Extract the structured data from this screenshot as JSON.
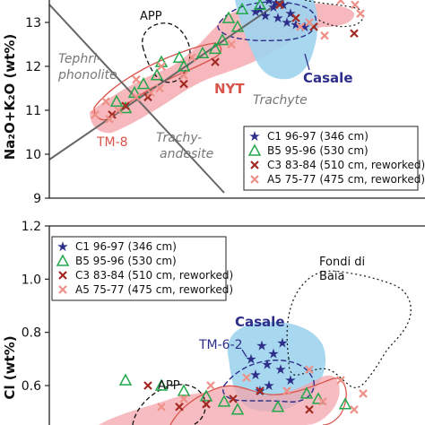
{
  "chart_data": [
    {
      "type": "scatter",
      "panel": "top",
      "ylabel": "Na₂O+K₂O (wt%)",
      "ylim": [
        9,
        13.7
      ],
      "yticks": [
        9,
        10,
        11,
        12,
        13
      ],
      "field_labels": [
        "Tephri-",
        "phonolite",
        "Trachyte",
        "Trachy-",
        "andesite"
      ],
      "region_labels": [
        "APP",
        "NYT",
        "Casale",
        "TM-8"
      ],
      "region_colors": {
        "NYT": "#f4a6ac",
        "Casale": "#9fd4ee",
        "APP": "#111111",
        "TM-8": "#d9544a"
      },
      "legend": {
        "placement": "lower-right",
        "entries": [
          {
            "symbol": "★",
            "label": "C1 96-97 (346 cm)",
            "color": "#2d2e8a"
          },
          {
            "symbol": "△",
            "label": "B5 95-96 (530 cm)",
            "color": "#22a84a"
          },
          {
            "symbol": "✖",
            "label": "C3 83-84 (510 cm, reworked)",
            "color": "#a32a22"
          },
          {
            "symbol": "✖",
            "label": "A5 75-77 (475 cm, reworked)",
            "color": "#ee9088"
          }
        ]
      },
      "series": [
        {
          "name": "C1 96-97 (346 cm)",
          "color": "#2d2e8a",
          "points": [
            [
              0,
              13.5
            ],
            [
              0,
              13.45
            ],
            [
              0,
              13.4
            ],
            [
              0,
              13.3
            ],
            [
              0,
              13.2
            ],
            [
              0,
              13.15
            ],
            [
              0,
              13.1
            ],
            [
              0,
              13.0
            ],
            [
              0,
              12.95
            ],
            [
              0,
              13.25
            ],
            [
              0,
              13.35
            ],
            [
              0,
              12.9
            ]
          ]
        },
        {
          "name": "B5 95-96 (530 cm)",
          "color": "#22a84a",
          "points": [
            [
              0,
              13.3
            ],
            [
              0,
              13.1
            ],
            [
              0,
              12.9
            ],
            [
              0,
              12.2
            ],
            [
              0,
              12.1
            ],
            [
              0,
              12.0
            ],
            [
              0,
              11.8
            ],
            [
              0,
              11.6
            ],
            [
              0,
              11.4
            ],
            [
              0,
              11.2
            ],
            [
              0,
              11.05
            ],
            [
              0,
              13.4
            ],
            [
              0,
              12.6
            ],
            [
              0,
              12.4
            ],
            [
              0,
              12.3
            ]
          ]
        },
        {
          "name": "C3 83-84 (510 cm, reworked)",
          "color": "#a32a22",
          "points": [
            [
              0,
              13.4
            ],
            [
              0,
              12.9
            ],
            [
              0,
              12.75
            ],
            [
              0,
              11.3
            ],
            [
              0,
              11.1
            ],
            [
              0,
              10.9
            ],
            [
              0,
              11.6
            ],
            [
              0,
              12.1
            ],
            [
              0,
              13.1
            ]
          ]
        },
        {
          "name": "A5 75-77 (475 cm, reworked)",
          "color": "#ee9088",
          "points": [
            [
              0,
              13.5
            ],
            [
              0,
              13.4
            ],
            [
              0,
              13.2
            ],
            [
              0,
              12.9
            ],
            [
              0,
              12.5
            ],
            [
              0,
              12.2
            ],
            [
              0,
              12.0
            ],
            [
              0,
              11.7
            ],
            [
              0,
              11.5
            ],
            [
              0,
              11.3
            ],
            [
              0,
              11.2
            ],
            [
              0,
              11.0
            ],
            [
              0,
              10.9
            ],
            [
              0,
              10.8
            ],
            [
              0,
              11.8
            ],
            [
              0,
              11.4
            ],
            [
              0,
              12.7
            ],
            [
              0,
              13.0
            ]
          ]
        }
      ]
    },
    {
      "type": "scatter",
      "panel": "bottom",
      "ylabel": "Cl (wt%)",
      "ylim": [
        0.5,
        1.2
      ],
      "yticks": [
        0.6,
        0.8,
        1.0,
        1.2
      ],
      "region_labels": [
        "Fondi di",
        "Baia",
        "Casale",
        "TM-6-2",
        "APP"
      ],
      "legend": {
        "placement": "top-left",
        "entries": [
          {
            "symbol": "★",
            "label": "C1 96-97 (346 cm)",
            "color": "#2d2e8a"
          },
          {
            "symbol": "△",
            "label": "B5 95-96 (530 cm)",
            "color": "#22a84a"
          },
          {
            "symbol": "✖",
            "label": "C3 83-84 (510 cm, reworked)",
            "color": "#a32a22"
          },
          {
            "symbol": "✖",
            "label": "A5 75-77 (475 cm, reworked)",
            "color": "#ee9088"
          }
        ]
      },
      "series": [
        {
          "name": "C1 96-97 (346 cm)",
          "color": "#2d2e8a",
          "points": [
            [
              0,
              0.76
            ],
            [
              0,
              0.75
            ],
            [
              0,
              0.72
            ],
            [
              0,
              0.7
            ],
            [
              0,
              0.68
            ],
            [
              0,
              0.66
            ],
            [
              0,
              0.64
            ],
            [
              0,
              0.62
            ],
            [
              0,
              0.6
            ],
            [
              0,
              0.58
            ]
          ]
        },
        {
          "name": "B5 95-96 (530 cm)",
          "color": "#22a84a",
          "points": [
            [
              0,
              0.62
            ],
            [
              0,
              0.6
            ],
            [
              0,
              0.58
            ],
            [
              0,
              0.56
            ],
            [
              0,
              0.54
            ],
            [
              0,
              0.52
            ],
            [
              0,
              0.55
            ],
            [
              0,
              0.53
            ],
            [
              0,
              0.51
            ],
            [
              0,
              0.57
            ]
          ]
        },
        {
          "name": "C3 83-84 (510 cm, reworked)",
          "color": "#a32a22",
          "points": [
            [
              0,
              0.52
            ],
            [
              0,
              0.53
            ],
            [
              0,
              0.55
            ],
            [
              0,
              0.58
            ],
            [
              0,
              0.6
            ],
            [
              0,
              0.51
            ]
          ]
        },
        {
          "name": "A5 75-77 (475 cm, reworked)",
          "color": "#ee9088",
          "points": [
            [
              0,
              0.52
            ],
            [
              0,
              0.55
            ],
            [
              0,
              0.6
            ],
            [
              0,
              0.63
            ],
            [
              0,
              0.58
            ],
            [
              0,
              0.54
            ],
            [
              0,
              0.51
            ],
            [
              0,
              0.57
            ],
            [
              0,
              0.62
            ],
            [
              0,
              0.66
            ]
          ]
        }
      ]
    }
  ]
}
